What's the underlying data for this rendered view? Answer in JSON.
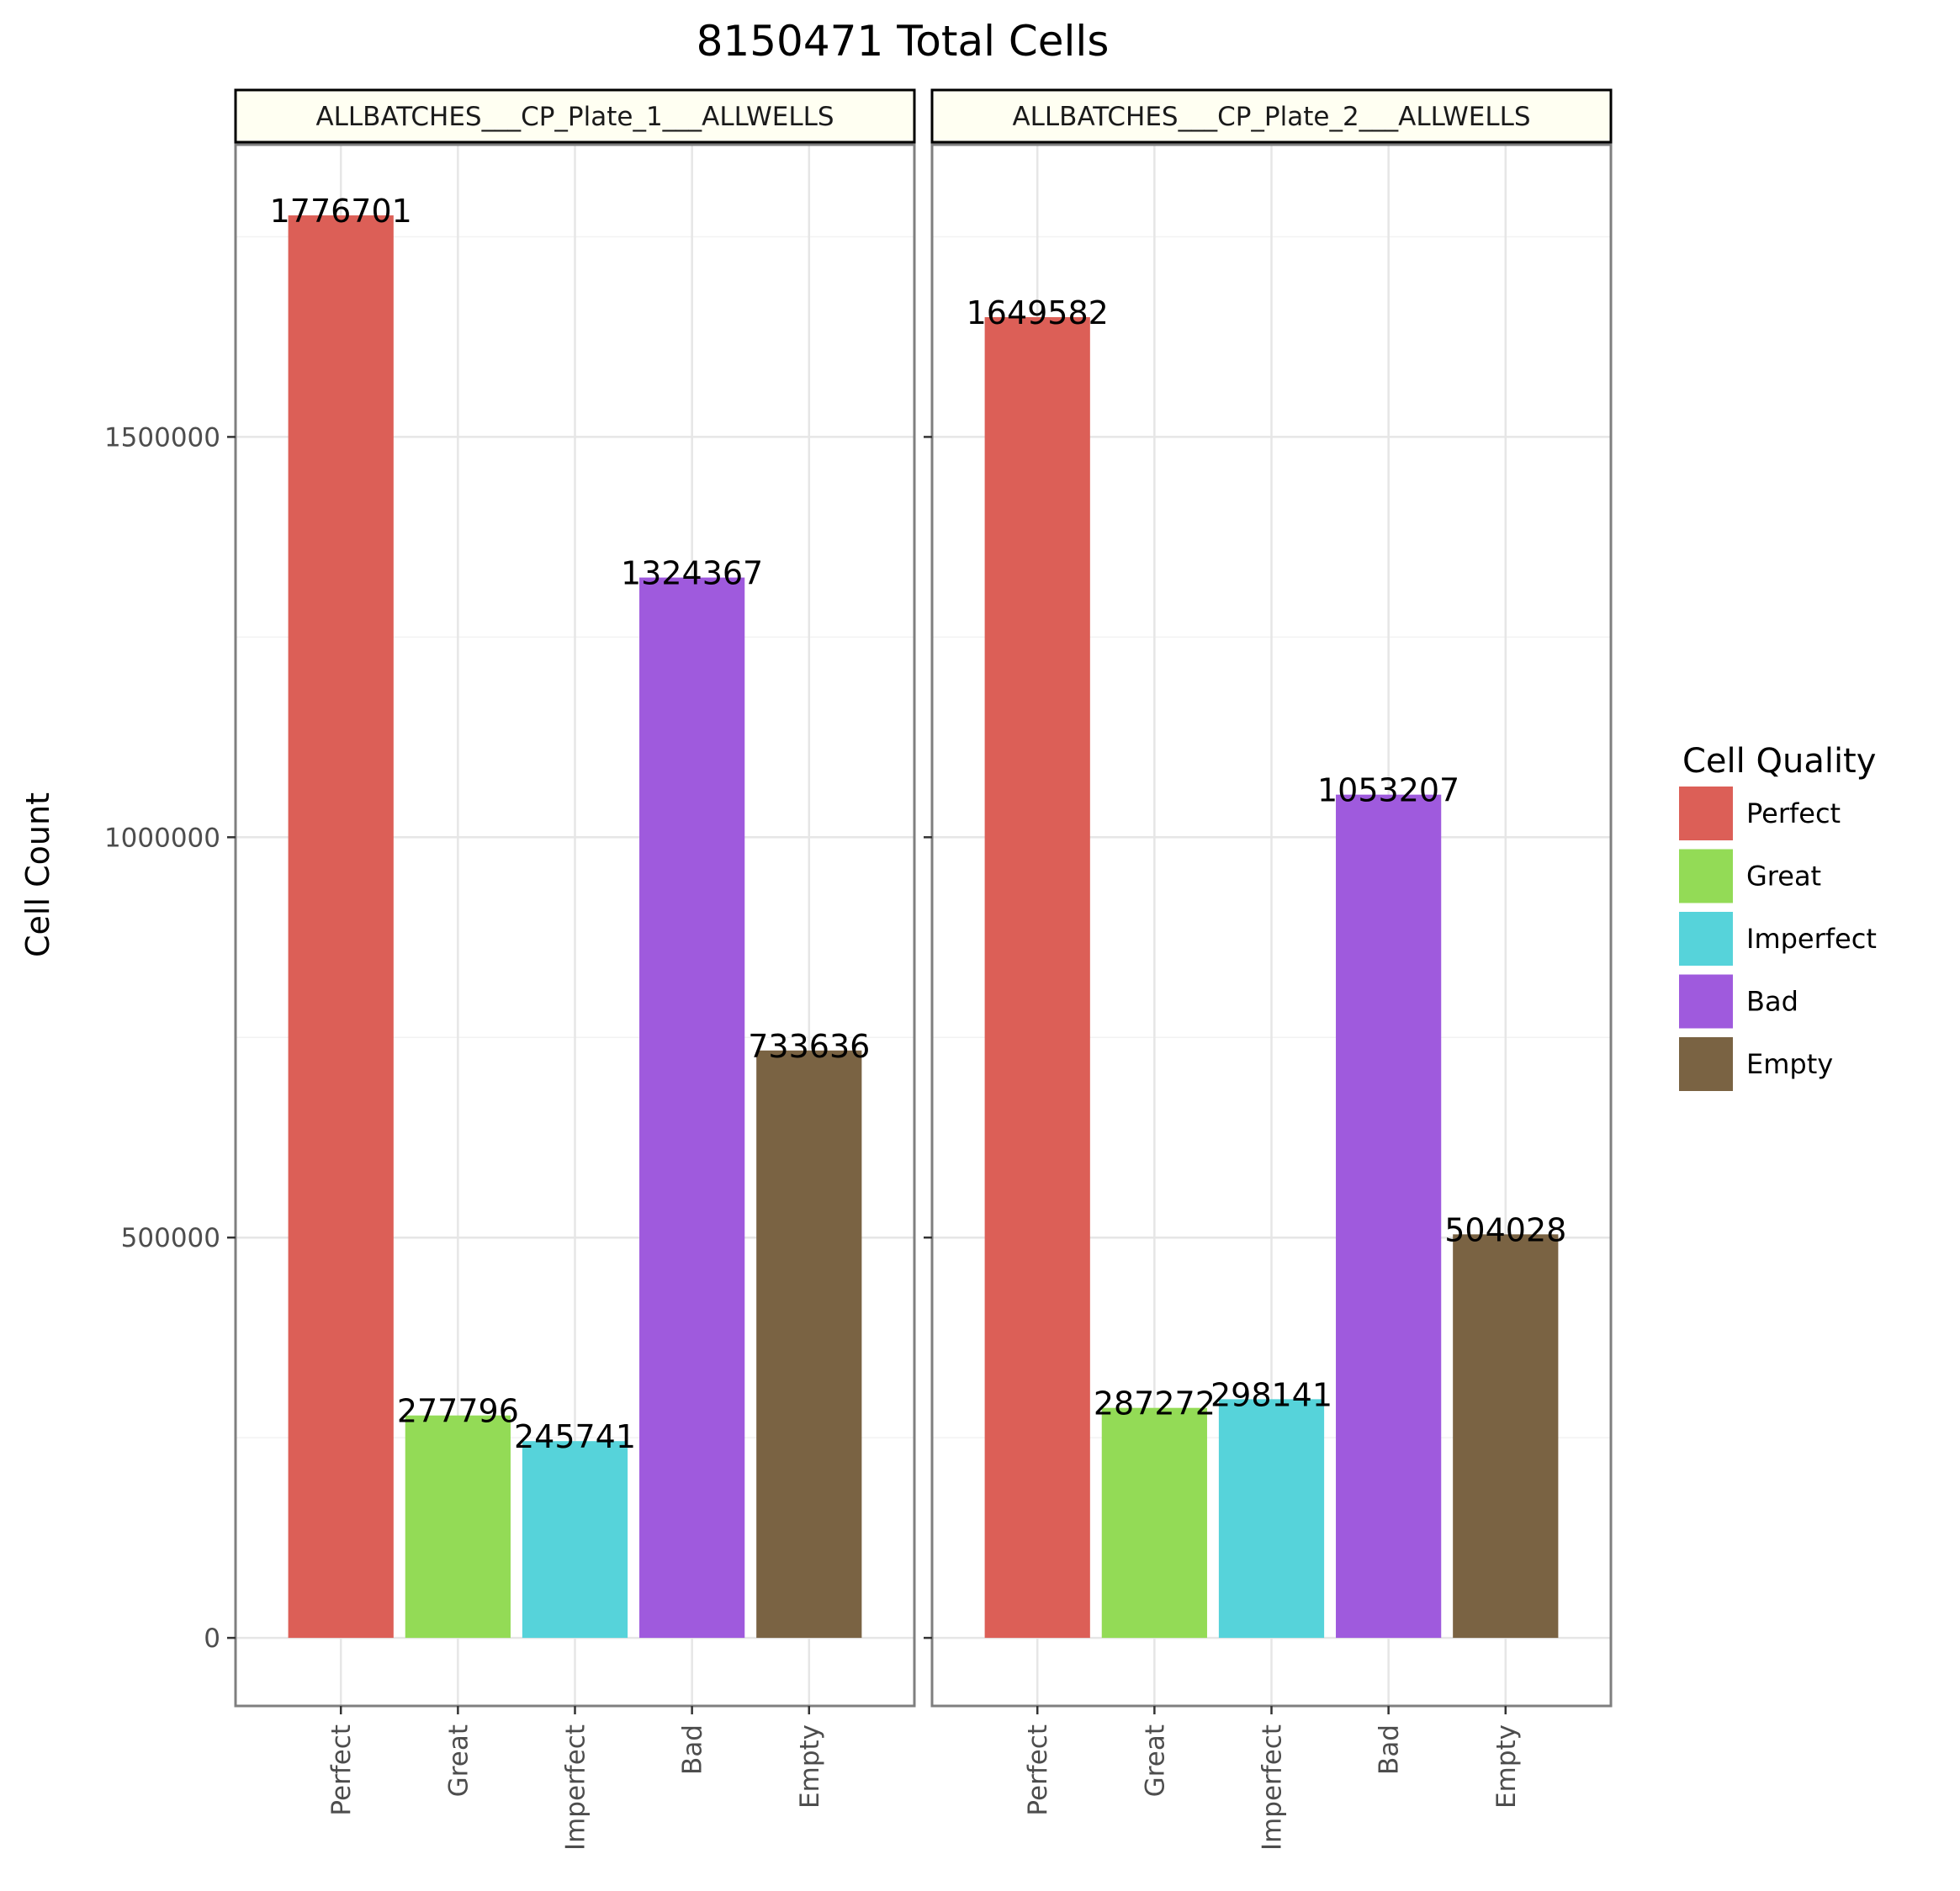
{
  "chart_data": {
    "type": "bar",
    "title": "8150471 Total Cells",
    "ylabel": "Cell Count",
    "xlabel": "",
    "ylim": [
      -85000,
      1865000
    ],
    "yticks": [
      0,
      500000,
      1000000,
      1500000
    ],
    "ytick_labels": [
      "0",
      "500000",
      "1000000",
      "1500000"
    ],
    "grid": true,
    "legend": {
      "title": "Cell Quality",
      "position": "right",
      "entries": [
        "Perfect",
        "Great",
        "Imperfect",
        "Bad",
        "Empty"
      ]
    },
    "categories": [
      "Perfect",
      "Great",
      "Imperfect",
      "Bad",
      "Empty"
    ],
    "colors": {
      "Perfect": "#dc5f57",
      "Great": "#93db56",
      "Imperfect": "#56d3da",
      "Bad": "#9f5add",
      "Empty": "#7a6343"
    },
    "panels": [
      {
        "strip": "ALLBATCHES___CP_Plate_1___ALLWELLS",
        "values": [
          1776701,
          277796,
          245741,
          1324367,
          733636
        ],
        "value_labels": [
          "1776701",
          "277796",
          "245741",
          "1324367",
          "733636"
        ]
      },
      {
        "strip": "ALLBATCHES___CP_Plate_2___ALLWELLS",
        "values": [
          1649582,
          287272,
          298141,
          1053207,
          504028
        ],
        "value_labels": [
          "1649582",
          "287272",
          "298141",
          "1053207",
          "504028"
        ]
      }
    ]
  }
}
